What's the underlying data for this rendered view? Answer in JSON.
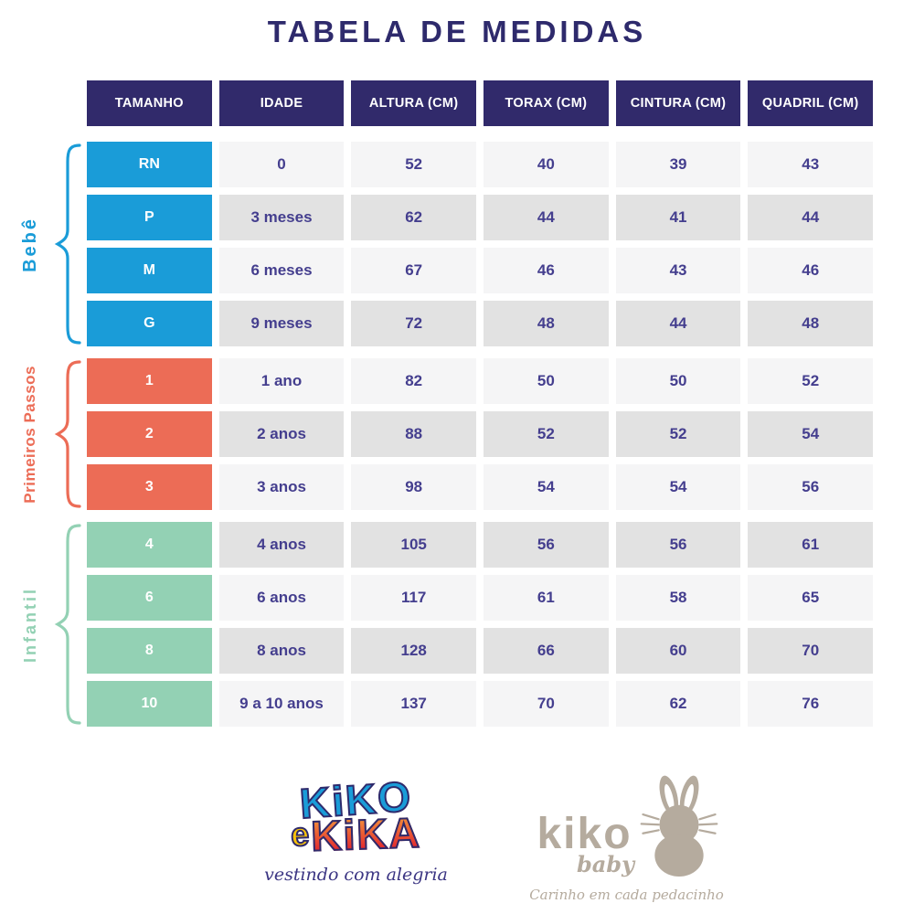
{
  "title": "TABELA DE MEDIDAS",
  "chart_data": {
    "type": "table",
    "title": "TABELA DE MEDIDAS",
    "columns": [
      "TAMANHO",
      "IDADE",
      "ALTURA (CM)",
      "TORAX (CM)",
      "CINTURA (CM)",
      "QUADRIL (CM)"
    ],
    "groups": [
      {
        "name": "Bebê",
        "color": "#1a9cd8",
        "rows": [
          {
            "size": "RN",
            "age": "0",
            "altura": "52",
            "torax": "40",
            "cintura": "39",
            "quadril": "43"
          },
          {
            "size": "P",
            "age": "3 meses",
            "altura": "62",
            "torax": "44",
            "cintura": "41",
            "quadril": "44"
          },
          {
            "size": "M",
            "age": "6 meses",
            "altura": "67",
            "torax": "46",
            "cintura": "43",
            "quadril": "46"
          },
          {
            "size": "G",
            "age": "9 meses",
            "altura": "72",
            "torax": "48",
            "cintura": "44",
            "quadril": "48"
          }
        ]
      },
      {
        "name": "Primeiros Passos",
        "color": "#ec6c56",
        "rows": [
          {
            "size": "1",
            "age": "1 ano",
            "altura": "82",
            "torax": "50",
            "cintura": "50",
            "quadril": "52"
          },
          {
            "size": "2",
            "age": "2 anos",
            "altura": "88",
            "torax": "52",
            "cintura": "52",
            "quadril": "54"
          },
          {
            "size": "3",
            "age": "3 anos",
            "altura": "98",
            "torax": "54",
            "cintura": "54",
            "quadril": "56"
          }
        ]
      },
      {
        "name": "Infantil",
        "color": "#93d1b4",
        "rows": [
          {
            "size": "4",
            "age": "4 anos",
            "altura": "105",
            "torax": "56",
            "cintura": "56",
            "quadril": "61"
          },
          {
            "size": "6",
            "age": "6 anos",
            "altura": "117",
            "torax": "61",
            "cintura": "58",
            "quadril": "65"
          },
          {
            "size": "8",
            "age": "8 anos",
            "altura": "128",
            "torax": "66",
            "cintura": "60",
            "quadril": "70"
          },
          {
            "size": "10",
            "age": "9 a 10 anos",
            "altura": "137",
            "torax": "70",
            "cintura": "62",
            "quadril": "76"
          }
        ]
      }
    ]
  },
  "footer": {
    "kiko_e_kika": {
      "word1": "KiKO",
      "connector": "e",
      "word2": "KiKA",
      "tagline": "vestindo com alegria"
    },
    "kiko_baby": {
      "name": "kiko",
      "sub": "baby",
      "tagline": "Carinho em cada pedacinho"
    }
  },
  "colors": {
    "header_bg": "#312a6b",
    "title_text": "#2e2a6c",
    "cell_text": "#443e8e",
    "row_light": "#f5f5f6",
    "row_dark": "#e2e2e2",
    "bebe_blue": "#1a9cd8",
    "primeiros_coral": "#ec6c56",
    "infantil_mint": "#93d1b4",
    "logo_yellow": "#f6c10a",
    "logo_orange": "#f4973b",
    "logo_red": "#e1232e",
    "baby_taupe": "#b5ab9e"
  }
}
